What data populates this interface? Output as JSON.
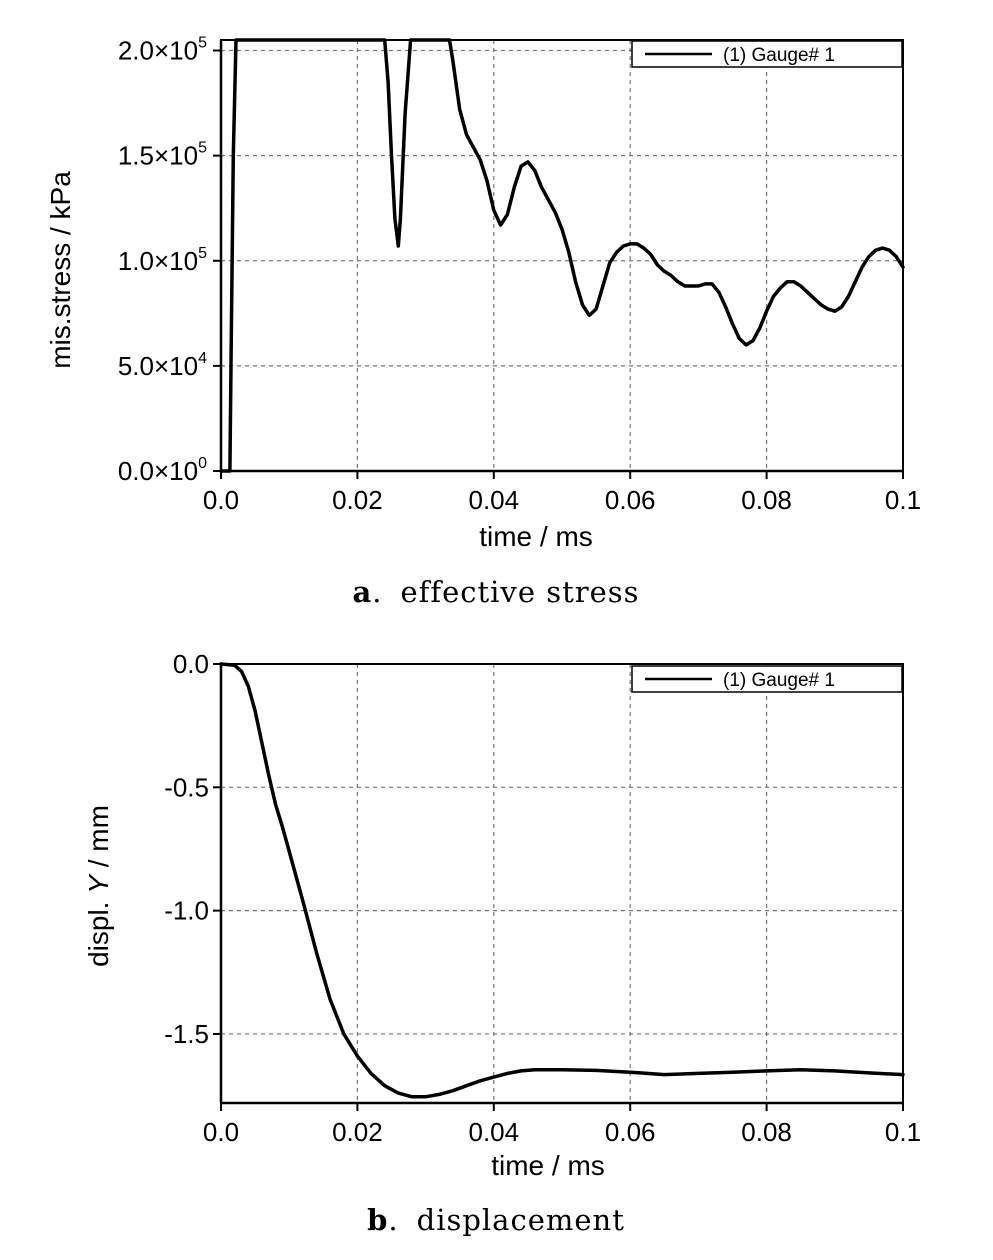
{
  "chart_data": [
    {
      "type": "line",
      "xlabel": "time / ms",
      "ylabel": "mis.stress / kPa",
      "xlim": [
        0,
        0.1
      ],
      "ylim": [
        0,
        205000
      ],
      "x_ticks": [
        "0.0",
        "0.02",
        "0.04",
        "0.06",
        "0.08",
        "0.1"
      ],
      "y_ticks": [
        {
          "value": 0,
          "mantissa": "0.0×10",
          "exp": "0"
        },
        {
          "value": 50000,
          "mantissa": "5.0×10",
          "exp": "4"
        },
        {
          "value": 100000,
          "mantissa": "1.0×10",
          "exp": "5"
        },
        {
          "value": 150000,
          "mantissa": "1.5×10",
          "exp": "5"
        },
        {
          "value": 200000,
          "mantissa": "2.0×10",
          "exp": "5"
        }
      ],
      "grid": true,
      "legend_position": "top-right",
      "caption": {
        "letter": "a",
        "sep": ".",
        "text": "effective stress"
      },
      "series": [
        {
          "name": "(1) Gauge# 1",
          "points": [
            [
              0.0,
              0
            ],
            [
              0.0013,
              0
            ],
            [
              0.0015,
              60000
            ],
            [
              0.0018,
              150000
            ],
            [
              0.0022,
              205000
            ],
            [
              0.024,
              205000
            ],
            [
              0.0245,
              185000
            ],
            [
              0.025,
              150000
            ],
            [
              0.0255,
              120000
            ],
            [
              0.026,
              107000
            ],
            [
              0.0263,
              120000
            ],
            [
              0.027,
              170000
            ],
            [
              0.0278,
              205000
            ],
            [
              0.0335,
              205000
            ],
            [
              0.034,
              195000
            ],
            [
              0.035,
              172000
            ],
            [
              0.036,
              160000
            ],
            [
              0.037,
              154000
            ],
            [
              0.038,
              148000
            ],
            [
              0.039,
              138000
            ],
            [
              0.04,
              124000
            ],
            [
              0.041,
              117000
            ],
            [
              0.042,
              122000
            ],
            [
              0.043,
              135000
            ],
            [
              0.044,
              145000
            ],
            [
              0.045,
              147000
            ],
            [
              0.046,
              143000
            ],
            [
              0.047,
              135000
            ],
            [
              0.048,
              129000
            ],
            [
              0.049,
              123000
            ],
            [
              0.05,
              115000
            ],
            [
              0.051,
              104000
            ],
            [
              0.052,
              90000
            ],
            [
              0.053,
              79000
            ],
            [
              0.054,
              74000
            ],
            [
              0.055,
              77000
            ],
            [
              0.056,
              88000
            ],
            [
              0.057,
              99000
            ],
            [
              0.058,
              104000
            ],
            [
              0.059,
              107000
            ],
            [
              0.06,
              108000
            ],
            [
              0.061,
              108000
            ],
            [
              0.062,
              106000
            ],
            [
              0.063,
              103000
            ],
            [
              0.064,
              98000
            ],
            [
              0.065,
              95000
            ],
            [
              0.066,
              93000
            ],
            [
              0.067,
              90000
            ],
            [
              0.068,
              88000
            ],
            [
              0.069,
              88000
            ],
            [
              0.07,
              88000
            ],
            [
              0.071,
              89000
            ],
            [
              0.072,
              89000
            ],
            [
              0.073,
              85000
            ],
            [
              0.074,
              78000
            ],
            [
              0.075,
              70000
            ],
            [
              0.076,
              63000
            ],
            [
              0.077,
              60000
            ],
            [
              0.078,
              62000
            ],
            [
              0.079,
              68000
            ],
            [
              0.08,
              76000
            ],
            [
              0.081,
              83000
            ],
            [
              0.082,
              87000
            ],
            [
              0.083,
              90000
            ],
            [
              0.084,
              90000
            ],
            [
              0.085,
              88000
            ],
            [
              0.086,
              85000
            ],
            [
              0.087,
              82000
            ],
            [
              0.088,
              79000
            ],
            [
              0.089,
              77000
            ],
            [
              0.09,
              76000
            ],
            [
              0.091,
              78000
            ],
            [
              0.092,
              83000
            ],
            [
              0.093,
              90000
            ],
            [
              0.094,
              97000
            ],
            [
              0.095,
              102000
            ],
            [
              0.096,
              105000
            ],
            [
              0.097,
              106000
            ],
            [
              0.098,
              105000
            ],
            [
              0.099,
              102000
            ],
            [
              0.1,
              97000
            ]
          ]
        }
      ]
    },
    {
      "type": "line",
      "xlabel": "time / ms",
      "ylabel_prefix": "displ. ",
      "ylabel_italic": "Y",
      "ylabel_suffix": " / mm",
      "xlim": [
        0,
        0.1
      ],
      "ylim": [
        -1.78,
        0
      ],
      "x_ticks": [
        "0.0",
        "0.02",
        "0.04",
        "0.06",
        "0.08",
        "0.1"
      ],
      "y_ticks": [
        {
          "value": 0,
          "label": "0.0"
        },
        {
          "value": -0.5,
          "label": "-0.5"
        },
        {
          "value": -1.0,
          "label": "-1.0"
        },
        {
          "value": -1.5,
          "label": "-1.5"
        }
      ],
      "grid": true,
      "legend_position": "top-right",
      "caption": {
        "letter": "b",
        "sep": ".",
        "text": "displacement"
      },
      "series": [
        {
          "name": "(1) Gauge# 1",
          "points": [
            [
              0.0,
              0
            ],
            [
              0.002,
              -0.005
            ],
            [
              0.003,
              -0.03
            ],
            [
              0.004,
              -0.09
            ],
            [
              0.005,
              -0.19
            ],
            [
              0.006,
              -0.32
            ],
            [
              0.007,
              -0.45
            ],
            [
              0.008,
              -0.57
            ],
            [
              0.009,
              -0.66
            ],
            [
              0.01,
              -0.76
            ],
            [
              0.012,
              -0.96
            ],
            [
              0.014,
              -1.17
            ],
            [
              0.016,
              -1.36
            ],
            [
              0.018,
              -1.5
            ],
            [
              0.02,
              -1.59
            ],
            [
              0.022,
              -1.66
            ],
            [
              0.024,
              -1.71
            ],
            [
              0.026,
              -1.74
            ],
            [
              0.028,
              -1.755
            ],
            [
              0.03,
              -1.755
            ],
            [
              0.032,
              -1.745
            ],
            [
              0.034,
              -1.73
            ],
            [
              0.036,
              -1.71
            ],
            [
              0.038,
              -1.69
            ],
            [
              0.04,
              -1.675
            ],
            [
              0.042,
              -1.66
            ],
            [
              0.044,
              -1.65
            ],
            [
              0.046,
              -1.645
            ],
            [
              0.05,
              -1.645
            ],
            [
              0.055,
              -1.648
            ],
            [
              0.06,
              -1.655
            ],
            [
              0.065,
              -1.665
            ],
            [
              0.07,
              -1.66
            ],
            [
              0.075,
              -1.655
            ],
            [
              0.08,
              -1.65
            ],
            [
              0.085,
              -1.645
            ],
            [
              0.09,
              -1.65
            ],
            [
              0.095,
              -1.658
            ],
            [
              0.1,
              -1.665
            ]
          ]
        }
      ]
    }
  ]
}
